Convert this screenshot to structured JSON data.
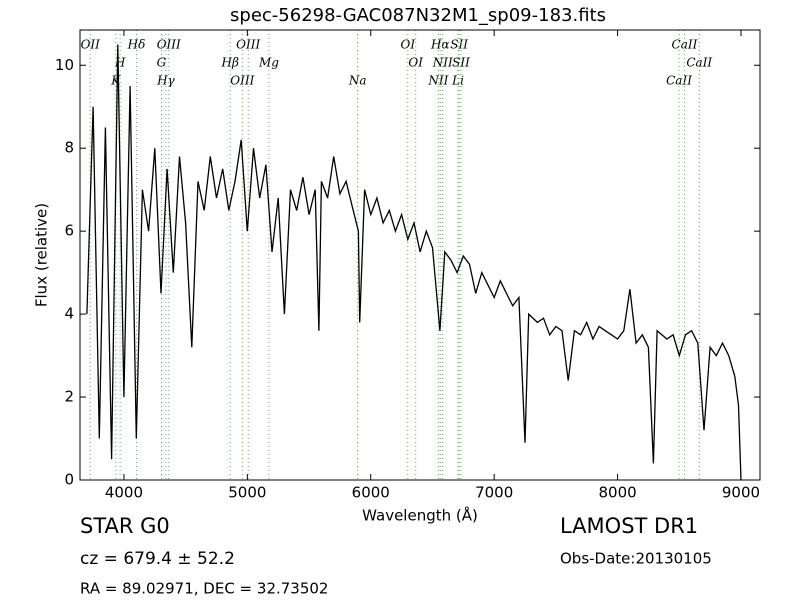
{
  "chart_data": {
    "type": "line",
    "title": "spec-56298-GAC087N32M1_sp09-183.fits",
    "x_label": "Wavelength (Å)",
    "y_label": "Flux (relative)",
    "color": "#000000",
    "xlim": [
      3644,
      9154
    ],
    "ylim": [
      0,
      10.85
    ],
    "xticks": [
      4000,
      5000,
      6000,
      7000,
      8000,
      9000
    ],
    "yticks": [
      0,
      2,
      4,
      6,
      8,
      10
    ],
    "grid": false,
    "x": [
      3700,
      3750,
      3800,
      3850,
      3900,
      3950,
      4000,
      4050,
      4100,
      4150,
      4200,
      4250,
      4300,
      4350,
      4400,
      4450,
      4500,
      4550,
      4600,
      4650,
      4700,
      4750,
      4800,
      4850,
      4900,
      4950,
      5000,
      5050,
      5100,
      5150,
      5200,
      5250,
      5300,
      5350,
      5400,
      5450,
      5500,
      5550,
      5580,
      5600,
      5650,
      5700,
      5750,
      5800,
      5850,
      5900,
      5910,
      5950,
      6000,
      6050,
      6100,
      6150,
      6200,
      6250,
      6300,
      6350,
      6400,
      6450,
      6500,
      6560,
      6600,
      6650,
      6700,
      6750,
      6800,
      6850,
      6900,
      6950,
      7000,
      7050,
      7100,
      7150,
      7200,
      7250,
      7280,
      7350,
      7400,
      7450,
      7500,
      7550,
      7600,
      7650,
      7700,
      7750,
      7800,
      7850,
      7900,
      7950,
      8000,
      8050,
      8100,
      8150,
      8200,
      8250,
      8290,
      8320,
      8400,
      8450,
      8500,
      8550,
      8600,
      8650,
      8700,
      8750,
      8800,
      8850,
      8900,
      8950,
      8980,
      9000
    ],
    "values": [
      4.0,
      9.0,
      1.0,
      8.5,
      0.5,
      10.5,
      2.0,
      9.5,
      1.0,
      7.0,
      6.0,
      8.0,
      4.5,
      7.5,
      5.0,
      7.8,
      6.2,
      3.2,
      7.2,
      6.5,
      7.8,
      6.8,
      7.5,
      6.5,
      7.2,
      8.2,
      6.0,
      8.0,
      6.8,
      7.6,
      5.5,
      6.8,
      4.0,
      7.0,
      6.5,
      7.3,
      6.4,
      7.0,
      3.6,
      7.2,
      6.8,
      7.8,
      6.9,
      7.2,
      6.6,
      6.0,
      3.8,
      7.0,
      6.4,
      6.8,
      6.2,
      6.5,
      6.0,
      6.4,
      5.8,
      6.2,
      5.5,
      6.0,
      5.6,
      3.6,
      5.5,
      5.3,
      5.0,
      5.4,
      5.2,
      4.5,
      5.0,
      4.7,
      4.4,
      4.8,
      4.5,
      4.2,
      4.4,
      0.9,
      4.0,
      3.8,
      3.9,
      3.5,
      3.7,
      3.6,
      2.4,
      3.6,
      3.5,
      3.8,
      3.4,
      3.7,
      3.6,
      3.5,
      3.4,
      3.6,
      4.6,
      3.3,
      3.5,
      3.2,
      0.4,
      3.6,
      3.4,
      3.5,
      3.0,
      3.5,
      3.6,
      3.3,
      1.2,
      3.2,
      3.0,
      3.3,
      3.0,
      2.5,
      1.8,
      0.0
    ],
    "line_color": "#55bb55",
    "spectral_lines": [
      {
        "label": "OII",
        "x": 3727
      },
      {
        "label": "H",
        "x": 3969
      },
      {
        "label": "K",
        "x": 3934
      },
      {
        "label": "Hδ",
        "x": 4102
      },
      {
        "label": "G",
        "x": 4304
      },
      {
        "label": "Hγ",
        "x": 4340
      },
      {
        "label": "OIII",
        "x": 4363
      },
      {
        "label": "Hβ",
        "x": 4861
      },
      {
        "label": "OIII",
        "x": 4959
      },
      {
        "label": "OIII",
        "x": 5007
      },
      {
        "label": "Mg",
        "x": 5175
      },
      {
        "label": "Na",
        "x": 5894
      },
      {
        "label": "OI",
        "x": 6300
      },
      {
        "label": "OI",
        "x": 6364
      },
      {
        "label": "NII",
        "x": 6548
      },
      {
        "label": "Hα",
        "x": 6563
      },
      {
        "label": "NII",
        "x": 6583
      },
      {
        "label": "Li",
        "x": 6707
      },
      {
        "label": "SII",
        "x": 6716
      },
      {
        "label": "SII",
        "x": 6731
      },
      {
        "label": "CaII",
        "x": 8498
      },
      {
        "label": "CaII",
        "x": 8542
      },
      {
        "label": "CaII",
        "x": 8662
      }
    ],
    "info": {
      "class": "STAR   G0",
      "cz": "cz = 679.4 ± 52.2",
      "coords": "RA = 89.02971, DEC = 32.73502",
      "survey": "LAMOST DR1",
      "obs_date": "Obs-Date:20130105"
    }
  }
}
